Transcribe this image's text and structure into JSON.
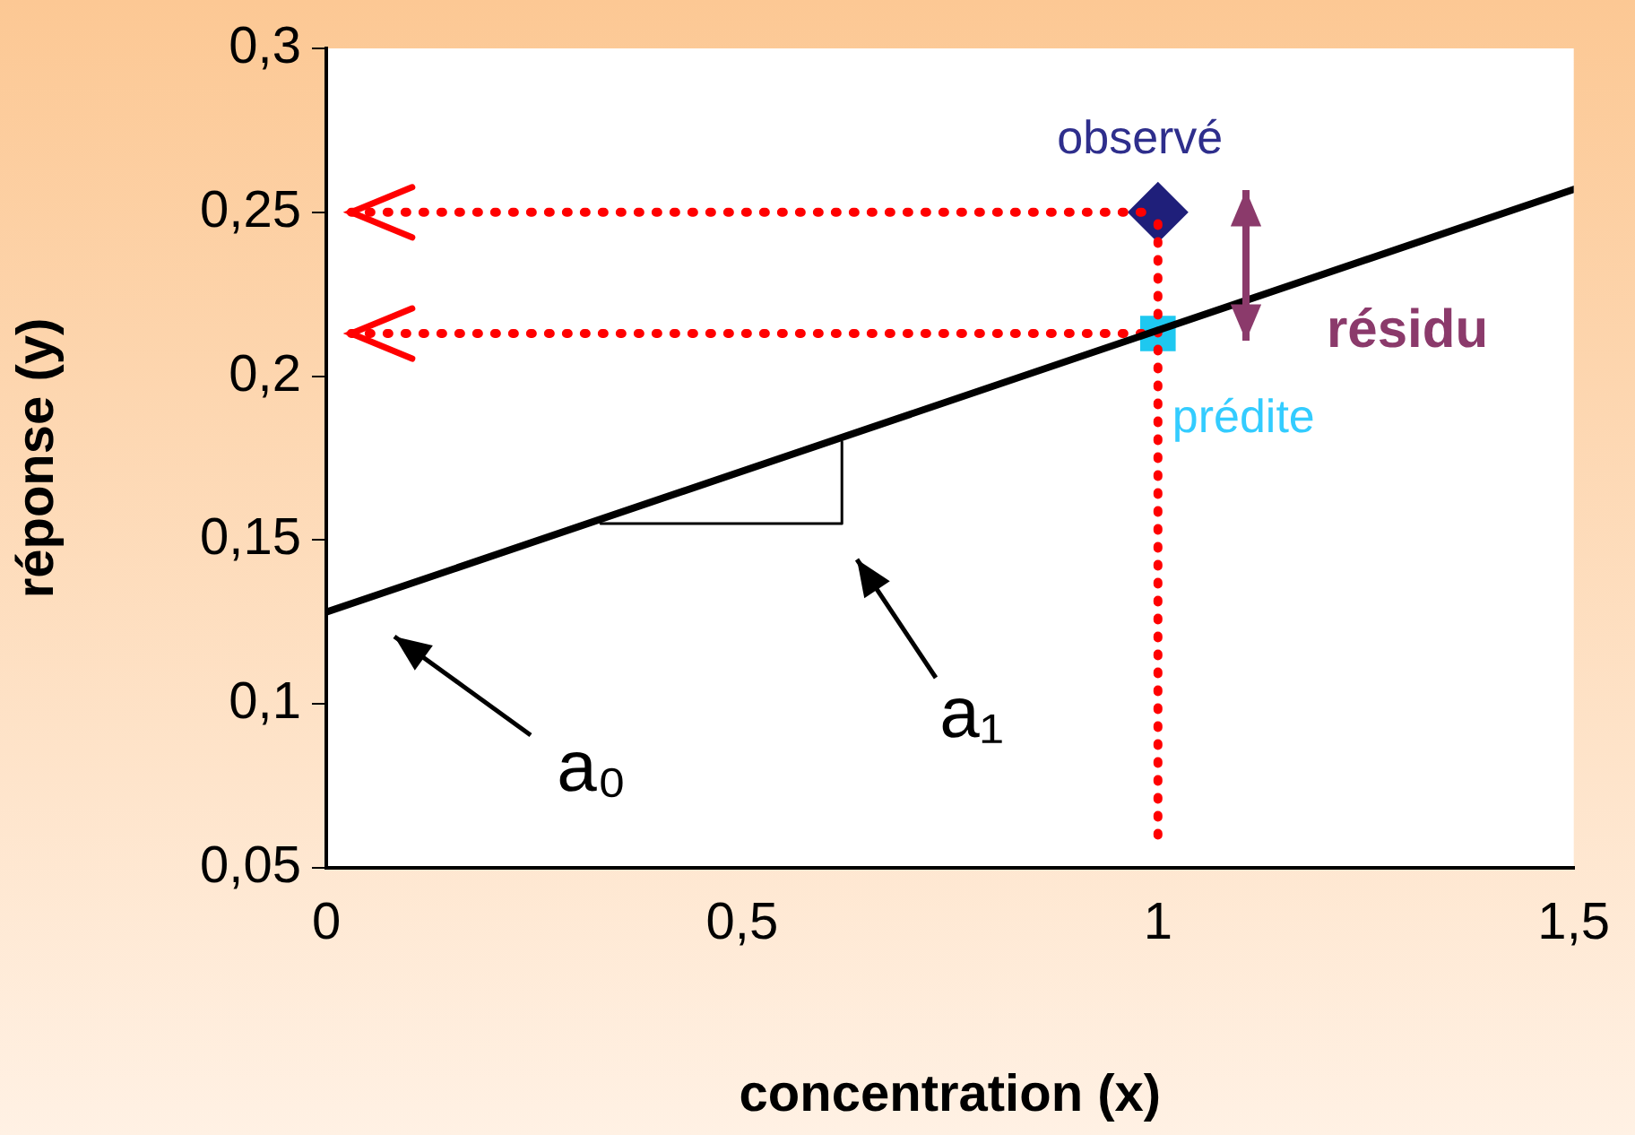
{
  "chart_data": {
    "type": "line",
    "xlabel": "concentration (x)",
    "ylabel": "réponse (y)",
    "xlim": [
      0,
      1.5
    ],
    "xticks": [
      {
        "value": 0,
        "label": "0"
      },
      {
        "value": 0.5,
        "label": "0,5"
      },
      {
        "value": 1,
        "label": "1"
      },
      {
        "value": 1.5,
        "label": "1,5"
      }
    ],
    "ylim": [
      0.05,
      0.3
    ],
    "yticks": [
      {
        "value": 0.05,
        "label": "0,05"
      },
      {
        "value": 0.1,
        "label": "0,1"
      },
      {
        "value": 0.15,
        "label": "0,15"
      },
      {
        "value": 0.2,
        "label": "0,2"
      },
      {
        "value": 0.25,
        "label": "0,25"
      },
      {
        "value": 0.3,
        "label": "0,3"
      }
    ],
    "grid": false,
    "legend": false,
    "series": [
      {
        "color": "#000000",
        "x": [
          0,
          1.5
        ],
        "values": [
          0.128,
          0.257
        ],
        "marker": "none",
        "line_style": "solid"
      },
      {
        "color": "#000000",
        "x": [
          0.33,
          0.62,
          0.62
        ],
        "values": [
          0.155,
          0.155,
          0.18
        ],
        "marker": "none",
        "line_style": "solid"
      },
      {
        "color": "#ff0000",
        "x": [
          0.03,
          1
        ],
        "values": [
          0.25,
          0.25
        ],
        "marker": "none",
        "line_style": "dotted"
      },
      {
        "color": "#ff0000",
        "x": [
          0.03,
          1
        ],
        "values": [
          0.213,
          0.213
        ],
        "marker": "none",
        "line_style": "dotted"
      },
      {
        "color": "#ff0000",
        "x": [
          1,
          1
        ],
        "values": [
          0.06,
          0.25
        ],
        "marker": "none",
        "line_style": "dotted"
      },
      {
        "type": "scatter",
        "color": "#1f1f7a",
        "x": [
          1
        ],
        "values": [
          0.25
        ],
        "marker": "diamond"
      },
      {
        "type": "scatter",
        "color": "#1ec8f0",
        "x": [
          1
        ],
        "values": [
          0.213
        ],
        "marker": "square"
      }
    ],
    "annotations": [
      {
        "text": "observé",
        "x": 1,
        "y": 0.25
      },
      {
        "text": "prédite",
        "x": 1,
        "y": 0.213
      },
      "résidu",
      "a₀",
      "a₁"
    ]
  }
}
